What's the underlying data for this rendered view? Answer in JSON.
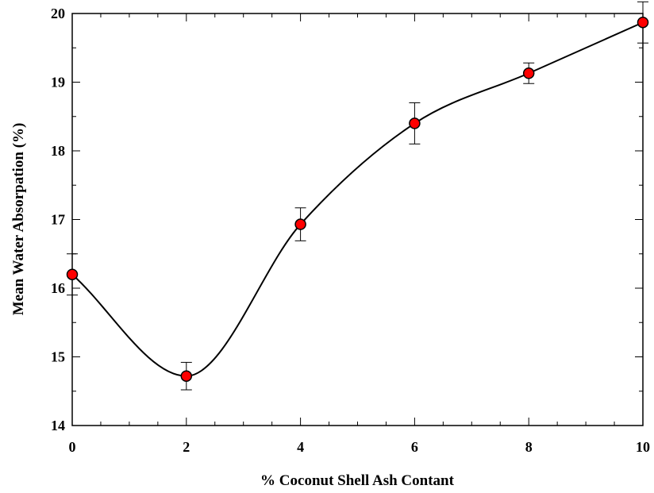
{
  "chart_data": {
    "type": "line",
    "title": "",
    "xlabel": "% Coconut Shell Ash Contant",
    "ylabel": "Mean Water Absorpation (%)",
    "xlim": [
      0,
      10
    ],
    "ylim": [
      14,
      20
    ],
    "x_ticks": [
      0,
      2,
      4,
      6,
      8,
      10
    ],
    "y_ticks": [
      14,
      15,
      16,
      17,
      18,
      19,
      20
    ],
    "x_tick_labels": [
      "0",
      "2",
      "4",
      "6",
      "8",
      "10"
    ],
    "y_tick_labels": [
      "14",
      "15",
      "16",
      "17",
      "18",
      "19",
      "20"
    ],
    "grid": false,
    "legend": "none",
    "line_color": "#000000",
    "marker_color": "#ff0000",
    "series": [
      {
        "x": [
          0,
          2,
          4,
          6,
          8,
          10
        ],
        "y": [
          16.2,
          14.72,
          16.93,
          18.4,
          19.13,
          19.87
        ],
        "error": [
          0.3,
          0.2,
          0.24,
          0.3,
          0.15,
          0.3
        ]
      }
    ]
  }
}
